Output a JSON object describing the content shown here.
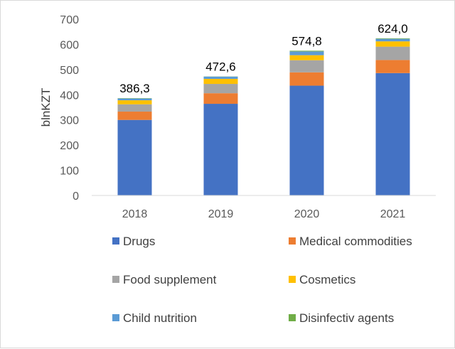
{
  "chart_data": {
    "type": "bar",
    "stacked": true,
    "ylabel": "blnKZT",
    "xlabel": "",
    "ylim": [
      0,
      700
    ],
    "yticks": [
      0,
      100,
      200,
      300,
      400,
      500,
      600,
      700
    ],
    "categories": [
      "2018",
      "2019",
      "2020",
      "2021"
    ],
    "totals": [
      "386,3",
      "472,6",
      "574,8",
      "624,0"
    ],
    "series": [
      {
        "name": "Drugs",
        "color": "#4472C4",
        "values": [
          300,
          364,
          436,
          486
        ]
      },
      {
        "name": "Medical commodities",
        "color": "#ED7D31",
        "values": [
          33,
          42,
          53,
          52
        ]
      },
      {
        "name": "Food supplement",
        "color": "#A5A5A5",
        "values": [
          29,
          37,
          48,
          53
        ]
      },
      {
        "name": "Cosmetics",
        "color": "#FFC000",
        "values": [
          16,
          20,
          20,
          21
        ]
      },
      {
        "name": "Child nutrition",
        "color": "#5B9BD5",
        "values": [
          7,
          9,
          15,
          10
        ]
      },
      {
        "name": "Disinfectiv agents",
        "color": "#70AD47",
        "values": [
          1.3,
          0.6,
          2.8,
          2.0
        ]
      }
    ],
    "grid": false,
    "legend_position": "bottom"
  }
}
